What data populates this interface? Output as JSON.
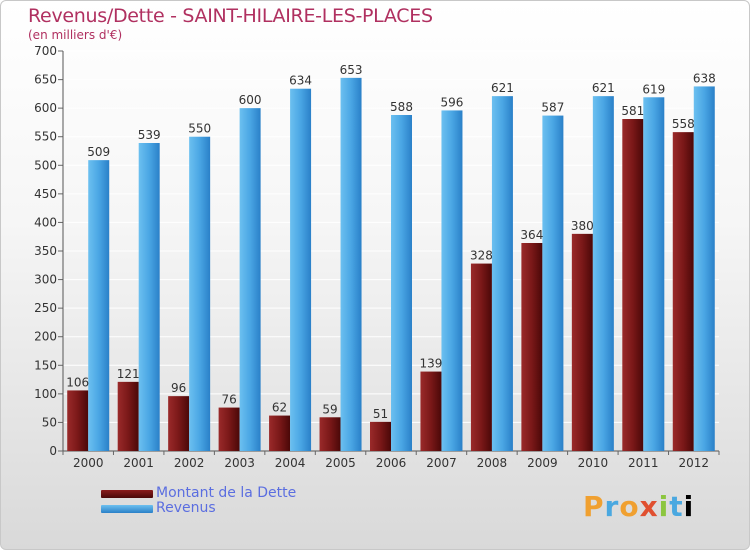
{
  "title": "Revenus/Dette - SAINT-HILAIRE-LES-PLACES",
  "subtitle": "(en milliers d'€)",
  "colors": {
    "dette": "#6e1414",
    "revenus": "#3a98dc",
    "title": "#b03060",
    "legend_text": "#5b6ee0"
  },
  "chart_data": {
    "type": "bar",
    "categories": [
      "2000",
      "2001",
      "2002",
      "2003",
      "2004",
      "2005",
      "2006",
      "2007",
      "2008",
      "2009",
      "2010",
      "2011",
      "2012"
    ],
    "series": [
      {
        "name": "Montant de la Dette",
        "values": [
          106,
          121,
          96,
          76,
          62,
          59,
          51,
          139,
          328,
          364,
          380,
          581,
          558
        ]
      },
      {
        "name": "Revenus",
        "values": [
          509,
          539,
          550,
          600,
          634,
          653,
          588,
          596,
          621,
          587,
          621,
          619,
          638
        ]
      }
    ],
    "ylim": [
      0,
      700
    ],
    "yticks": [
      0,
      50,
      100,
      150,
      200,
      250,
      300,
      350,
      400,
      450,
      500,
      550,
      600,
      650,
      700
    ],
    "grid": true,
    "legend_position": "bottom-left"
  },
  "logo": {
    "letters": [
      "P",
      "r",
      "o",
      "x",
      "i",
      "t",
      "i"
    ]
  }
}
